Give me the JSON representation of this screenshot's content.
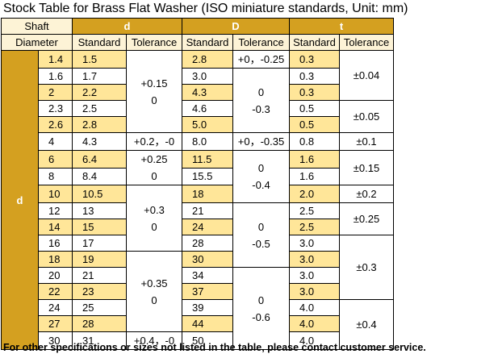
{
  "title": "Stock Table for Brass Flat Washer  (ISO miniature standards, Unit: mm)",
  "header": {
    "shaft": [
      "Shaft",
      "Diameter"
    ],
    "d": "d",
    "D": "D",
    "t": "t",
    "standard": "Standard",
    "tolerance": "Tolerance",
    "side": "d"
  },
  "rows": [
    [
      "1.4",
      "1.5",
      "2.8",
      "0.3"
    ],
    [
      "1.6",
      "1.7",
      "3.0",
      "0.3"
    ],
    [
      "2",
      "2.2",
      "4.3",
      "0.3"
    ],
    [
      "2.3",
      "2.5",
      "4.6",
      "0.5"
    ],
    [
      "2.6",
      "2.8",
      "5.0",
      "0.5"
    ],
    [
      "4",
      "4.3",
      "8.0",
      "0.8"
    ],
    [
      "6",
      "6.4",
      "11.5",
      "1.6"
    ],
    [
      "8",
      "8.4",
      "15.5",
      "1.6"
    ],
    [
      "10",
      "10.5",
      "18",
      "2.0"
    ],
    [
      "12",
      "13",
      "21",
      "2.5"
    ],
    [
      "14",
      "15",
      "24",
      "2.5"
    ],
    [
      "16",
      "17",
      "28",
      "3.0"
    ],
    [
      "18",
      "19",
      "30",
      "3.0"
    ],
    [
      "20",
      "21",
      "34",
      "3.0"
    ],
    [
      "22",
      "23",
      "37",
      "3.0"
    ],
    [
      "24",
      "25",
      "39",
      "4.0"
    ],
    [
      "27",
      "28",
      "44",
      "4.0"
    ],
    [
      "30",
      "31",
      "50",
      "4.0"
    ]
  ],
  "d_tolerance": [
    [
      "+0.15",
      "0"
    ],
    [
      "+0.2，-0"
    ],
    [
      "+0.25",
      "0"
    ],
    [
      "+0.3",
      "0"
    ],
    [
      "+0.35",
      "0"
    ],
    [
      "+0.4，-0"
    ]
  ],
  "D_tolerance": [
    [
      "+0，-0.25"
    ],
    [
      "0",
      "-0.3"
    ],
    [
      "+0，-0.35"
    ],
    [
      "0",
      "-0.4"
    ],
    [
      "0",
      "-0.5"
    ],
    [
      "0",
      "-0.6"
    ]
  ],
  "t_tolerance": [
    [
      "±0.04"
    ],
    [
      "±0.05"
    ],
    [
      "±0.1"
    ],
    [
      "±0.15"
    ],
    [
      "±0.2"
    ],
    [
      "±0.25"
    ],
    [
      "±0.3"
    ],
    [
      "±0.4"
    ]
  ],
  "footer": "For other specifications or sizes not listed in the table, please contact customer service."
}
